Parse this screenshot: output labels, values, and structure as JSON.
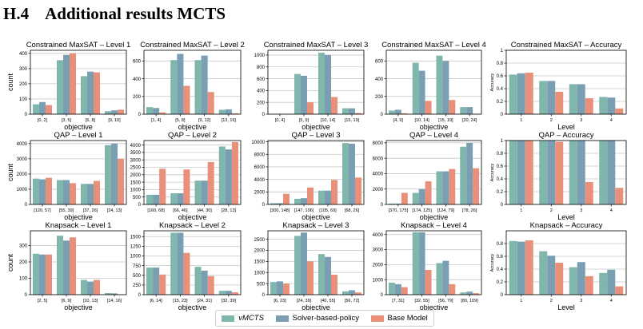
{
  "heading": {
    "number": "H.4",
    "title": "Additional results MCTS"
  },
  "legend": {
    "items": [
      {
        "label": "vMCTS",
        "color": "#7fb7ad"
      },
      {
        "label": "Solver-based-policy",
        "color": "#7a9fb3"
      },
      {
        "label": "Base Model",
        "color": "#e8907a"
      }
    ]
  },
  "chart_data": [
    {
      "type": "bar",
      "title": "Constrained MaxSAT – Level 1",
      "xlabel": "objective",
      "ylabel": "count",
      "categories": [
        "[0, 2]",
        "[3, 5]",
        "[6, 8]",
        "[9, 10]"
      ],
      "ylim": [
        0,
        420
      ],
      "yticks": [
        0,
        100,
        200,
        300,
        400
      ],
      "series": [
        {
          "name": "vMCTS",
          "values": [
            65,
            355,
            250,
            20
          ]
        },
        {
          "name": "Solver-based-policy",
          "values": [
            80,
            390,
            280,
            25
          ]
        },
        {
          "name": "Base Model",
          "values": [
            60,
            400,
            275,
            30
          ]
        }
      ]
    },
    {
      "type": "bar",
      "title": "Constrained MaxSAT – Level 2",
      "xlabel": "objective",
      "ylabel": "",
      "categories": [
        "[1, 4]",
        "[5, 8]",
        "[9, 12]",
        "[13, 16]"
      ],
      "ylim": [
        0,
        720
      ],
      "yticks": [
        0,
        200,
        400,
        600
      ],
      "series": [
        {
          "name": "vMCTS",
          "values": [
            80,
            610,
            610,
            50
          ]
        },
        {
          "name": "Solver-based-policy",
          "values": [
            70,
            680,
            660,
            55
          ]
        },
        {
          "name": "Base Model",
          "values": [
            20,
            320,
            250,
            10
          ]
        }
      ]
    },
    {
      "type": "bar",
      "title": "Constrained MaxSAT – Level 3",
      "xlabel": "objective",
      "ylabel": "",
      "categories": [
        "[0, 4]",
        "[5, 9]",
        "[10, 14]",
        "[15, 19]"
      ],
      "ylim": [
        0,
        1080
      ],
      "yticks": [
        0,
        200,
        400,
        600,
        800,
        1000
      ],
      "series": [
        {
          "name": "vMCTS",
          "values": [
            5,
            680,
            1040,
            100
          ]
        },
        {
          "name": "Solver-based-policy",
          "values": [
            5,
            650,
            1000,
            100
          ]
        },
        {
          "name": "Base Model",
          "values": [
            2,
            200,
            290,
            20
          ]
        }
      ]
    },
    {
      "type": "bar",
      "title": "Constrained MaxSAT – Level 4",
      "xlabel": "objective",
      "ylabel": "",
      "categories": [
        "[4, 9]",
        "[10, 14]",
        "[15, 19]",
        "[20, 24]"
      ],
      "ylim": [
        0,
        720
      ],
      "yticks": [
        0,
        200,
        400,
        600
      ],
      "series": [
        {
          "name": "vMCTS",
          "values": [
            40,
            580,
            660,
            80
          ]
        },
        {
          "name": "Solver-based-policy",
          "values": [
            50,
            490,
            600,
            80
          ]
        },
        {
          "name": "Base Model",
          "values": [
            10,
            150,
            160,
            5
          ]
        }
      ]
    },
    {
      "type": "bar",
      "title": "Constrained MaxSAT – Accuracy",
      "xlabel": "Level",
      "ylabel": "Accuracy",
      "categories": [
        "1",
        "2",
        "3",
        "4"
      ],
      "ylim": [
        0,
        1.0
      ],
      "yticks": [
        0.0,
        0.2,
        0.4,
        0.6,
        0.8,
        1.0
      ],
      "series": [
        {
          "name": "vMCTS",
          "values": [
            0.62,
            0.52,
            0.47,
            0.27
          ]
        },
        {
          "name": "Solver-based-policy",
          "values": [
            0.64,
            0.52,
            0.47,
            0.26
          ]
        },
        {
          "name": "Base Model",
          "values": [
            0.65,
            0.35,
            0.25,
            0.09
          ]
        }
      ]
    },
    {
      "type": "bar",
      "title": "QAP – Level 1",
      "xlabel": "objective",
      "ylabel": "count",
      "categories": [
        "[120, 57]",
        "[55, 39]",
        "[37, 26]",
        "[24, 13]"
      ],
      "ylim": [
        0,
        4200
      ],
      "yticks": [
        0,
        1000,
        2000,
        3000,
        4000
      ],
      "series": [
        {
          "name": "vMCTS",
          "values": [
            1700,
            1600,
            1350,
            3900
          ]
        },
        {
          "name": "Solver-based-policy",
          "values": [
            1650,
            1600,
            1350,
            4000
          ]
        },
        {
          "name": "Base Model",
          "values": [
            1750,
            1400,
            1550,
            3000
          ]
        }
      ]
    },
    {
      "type": "bar",
      "title": "QAP – Level 2",
      "xlabel": "objective",
      "ylabel": "",
      "categories": [
        "[160, 68]",
        "[66, 46]",
        "[44, 30]",
        "[28, 13]"
      ],
      "ylim": [
        0,
        4300
      ],
      "yticks": [
        0,
        500,
        1000,
        1500,
        2000,
        2500,
        3000,
        3500,
        4000
      ],
      "series": [
        {
          "name": "vMCTS",
          "values": [
            650,
            750,
            1600,
            3900
          ]
        },
        {
          "name": "Solver-based-policy",
          "values": [
            650,
            750,
            1600,
            3700
          ]
        },
        {
          "name": "Base Model",
          "values": [
            2400,
            2350,
            2850,
            4200
          ]
        }
      ]
    },
    {
      "type": "bar",
      "title": "QAP – Level 3",
      "xlabel": "objective",
      "ylabel": "",
      "categories": [
        "[300, 148]",
        "[147, 106]",
        "[105, 69]",
        "[68, 26]"
      ],
      "ylim": [
        0,
        10200
      ],
      "yticks": [
        0,
        2000,
        4000,
        6000,
        8000,
        10000
      ],
      "series": [
        {
          "name": "vMCTS",
          "values": [
            200,
            900,
            2200,
            9800
          ]
        },
        {
          "name": "Solver-based-policy",
          "values": [
            200,
            1000,
            2200,
            9700
          ]
        },
        {
          "name": "Base Model",
          "values": [
            1700,
            2700,
            3900,
            4300
          ]
        }
      ]
    },
    {
      "type": "bar",
      "title": "QAP – Level 4",
      "xlabel": "objective",
      "ylabel": "",
      "categories": [
        "[370, 175]",
        "[174, 125]",
        "[124, 79]",
        "[78, 26]"
      ],
      "ylim": [
        0,
        8300
      ],
      "yticks": [
        0,
        2000,
        4000,
        6000,
        8000
      ],
      "series": [
        {
          "name": "vMCTS",
          "values": [
            100,
            1500,
            4300,
            7500
          ]
        },
        {
          "name": "Solver-based-policy",
          "values": [
            100,
            2000,
            4300,
            8000
          ]
        },
        {
          "name": "Base Model",
          "values": [
            1500,
            3000,
            4600,
            4700
          ]
        }
      ]
    },
    {
      "type": "bar",
      "title": "QAP – Accuracy",
      "xlabel": "Level",
      "ylabel": "Accuracy",
      "categories": [
        "1",
        "2",
        "3",
        "4"
      ],
      "ylim": [
        0,
        1.0
      ],
      "yticks": [
        0.0,
        0.2,
        0.4,
        0.6,
        0.8,
        1.0
      ],
      "series": [
        {
          "name": "vMCTS",
          "values": [
            1.0,
            1.0,
            1.0,
            1.0
          ]
        },
        {
          "name": "Solver-based-policy",
          "values": [
            1.0,
            1.0,
            1.0,
            1.0
          ]
        },
        {
          "name": "Base Model",
          "values": [
            1.0,
            0.98,
            0.35,
            0.26
          ]
        }
      ]
    },
    {
      "type": "bar",
      "title": "Knapsack – Level 1",
      "xlabel": "objective",
      "ylabel": "count",
      "categories": [
        "[2, 5]",
        "[6, 9]",
        "[10, 13]",
        "[14, 16]"
      ],
      "ylim": [
        0,
        390
      ],
      "yticks": [
        0,
        100,
        200,
        300
      ],
      "series": [
        {
          "name": "vMCTS",
          "values": [
            250,
            360,
            90,
            10
          ]
        },
        {
          "name": "Solver-based-policy",
          "values": [
            245,
            330,
            80,
            8
          ]
        },
        {
          "name": "Base Model",
          "values": [
            245,
            350,
            90,
            2
          ]
        }
      ]
    },
    {
      "type": "bar",
      "title": "Knapsack – Level 2",
      "xlabel": "objective",
      "ylabel": "",
      "categories": [
        "[6, 14]",
        "[15, 23]",
        "[24, 31]",
        "[32, 39]"
      ],
      "ylim": [
        0,
        1650
      ],
      "yticks": [
        0,
        250,
        500,
        750,
        1000,
        1250,
        1500
      ],
      "series": [
        {
          "name": "vMCTS",
          "values": [
            700,
            1600,
            720,
            100
          ]
        },
        {
          "name": "Solver-based-policy",
          "values": [
            700,
            1600,
            620,
            100
          ]
        },
        {
          "name": "Base Model",
          "values": [
            520,
            1080,
            480,
            60
          ]
        }
      ]
    },
    {
      "type": "bar",
      "title": "Knapsack – Level 3",
      "xlabel": "objective",
      "ylabel": "",
      "categories": [
        "[6, 23]",
        "[24, 39]",
        "[40, 55]",
        "[56, 72]"
      ],
      "ylim": [
        0,
        2880
      ],
      "yticks": [
        0,
        500,
        1000,
        1500,
        2000,
        2500
      ],
      "series": [
        {
          "name": "vMCTS",
          "values": [
            570,
            2650,
            1830,
            150
          ]
        },
        {
          "name": "Solver-based-policy",
          "values": [
            600,
            2800,
            1700,
            200
          ]
        },
        {
          "name": "Base Model",
          "values": [
            500,
            1500,
            900,
            100
          ]
        }
      ]
    },
    {
      "type": "bar",
      "title": "Knapsack – Level 4",
      "xlabel": "objective",
      "ylabel": "",
      "categories": [
        "[7, 31]",
        "[32, 55]",
        "[56, 79]",
        "[80, 109]"
      ],
      "ylim": [
        0,
        4250
      ],
      "yticks": [
        0,
        1000,
        2000,
        3000,
        4000
      ],
      "series": [
        {
          "name": "vMCTS",
          "values": [
            800,
            4150,
            2100,
            150
          ]
        },
        {
          "name": "Solver-based-policy",
          "values": [
            700,
            4150,
            2250,
            200
          ]
        },
        {
          "name": "Base Model",
          "values": [
            500,
            1650,
            700,
            100
          ]
        }
      ]
    },
    {
      "type": "bar",
      "title": "Knapsack – Accuracy",
      "xlabel": "Level",
      "ylabel": "Accuracy",
      "categories": [
        "1",
        "2",
        "3",
        "4"
      ],
      "ylim": [
        0,
        1.0
      ],
      "yticks": [
        0.0,
        0.2,
        0.4,
        0.6,
        0.8
      ],
      "series": [
        {
          "name": "vMCTS",
          "values": [
            0.84,
            0.68,
            0.43,
            0.34
          ]
        },
        {
          "name": "Solver-based-policy",
          "values": [
            0.83,
            0.61,
            0.51,
            0.39
          ]
        },
        {
          "name": "Base Model",
          "values": [
            0.85,
            0.5,
            0.29,
            0.13
          ]
        }
      ]
    }
  ]
}
